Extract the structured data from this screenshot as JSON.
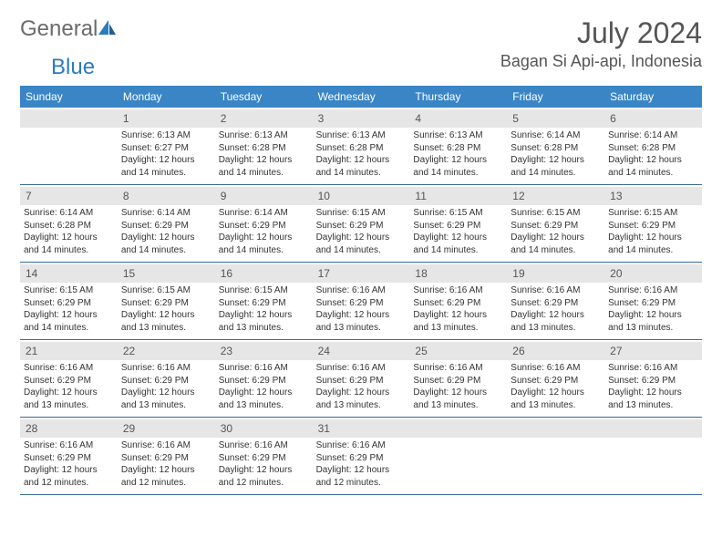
{
  "logo": {
    "word1": "General",
    "word2": "Blue"
  },
  "title": "July 2024",
  "location": "Bagan Si Api-api, Indonesia",
  "colors": {
    "header_bar": "#3a85c6",
    "row_divider": "#3a6a97",
    "daynum_bg": "#e6e6e6",
    "logo_gray": "#6b6b6b",
    "logo_blue": "#2b7bbf",
    "text": "#333333",
    "title_text": "#555555"
  },
  "dow": [
    "Sunday",
    "Monday",
    "Tuesday",
    "Wednesday",
    "Thursday",
    "Friday",
    "Saturday"
  ],
  "weeks": [
    [
      {
        "n": "",
        "sr": "",
        "ss": "",
        "dl1": "",
        "dl2": ""
      },
      {
        "n": "1",
        "sr": "Sunrise: 6:13 AM",
        "ss": "Sunset: 6:27 PM",
        "dl1": "Daylight: 12 hours",
        "dl2": "and 14 minutes."
      },
      {
        "n": "2",
        "sr": "Sunrise: 6:13 AM",
        "ss": "Sunset: 6:28 PM",
        "dl1": "Daylight: 12 hours",
        "dl2": "and 14 minutes."
      },
      {
        "n": "3",
        "sr": "Sunrise: 6:13 AM",
        "ss": "Sunset: 6:28 PM",
        "dl1": "Daylight: 12 hours",
        "dl2": "and 14 minutes."
      },
      {
        "n": "4",
        "sr": "Sunrise: 6:13 AM",
        "ss": "Sunset: 6:28 PM",
        "dl1": "Daylight: 12 hours",
        "dl2": "and 14 minutes."
      },
      {
        "n": "5",
        "sr": "Sunrise: 6:14 AM",
        "ss": "Sunset: 6:28 PM",
        "dl1": "Daylight: 12 hours",
        "dl2": "and 14 minutes."
      },
      {
        "n": "6",
        "sr": "Sunrise: 6:14 AM",
        "ss": "Sunset: 6:28 PM",
        "dl1": "Daylight: 12 hours",
        "dl2": "and 14 minutes."
      }
    ],
    [
      {
        "n": "7",
        "sr": "Sunrise: 6:14 AM",
        "ss": "Sunset: 6:28 PM",
        "dl1": "Daylight: 12 hours",
        "dl2": "and 14 minutes."
      },
      {
        "n": "8",
        "sr": "Sunrise: 6:14 AM",
        "ss": "Sunset: 6:29 PM",
        "dl1": "Daylight: 12 hours",
        "dl2": "and 14 minutes."
      },
      {
        "n": "9",
        "sr": "Sunrise: 6:14 AM",
        "ss": "Sunset: 6:29 PM",
        "dl1": "Daylight: 12 hours",
        "dl2": "and 14 minutes."
      },
      {
        "n": "10",
        "sr": "Sunrise: 6:15 AM",
        "ss": "Sunset: 6:29 PM",
        "dl1": "Daylight: 12 hours",
        "dl2": "and 14 minutes."
      },
      {
        "n": "11",
        "sr": "Sunrise: 6:15 AM",
        "ss": "Sunset: 6:29 PM",
        "dl1": "Daylight: 12 hours",
        "dl2": "and 14 minutes."
      },
      {
        "n": "12",
        "sr": "Sunrise: 6:15 AM",
        "ss": "Sunset: 6:29 PM",
        "dl1": "Daylight: 12 hours",
        "dl2": "and 14 minutes."
      },
      {
        "n": "13",
        "sr": "Sunrise: 6:15 AM",
        "ss": "Sunset: 6:29 PM",
        "dl1": "Daylight: 12 hours",
        "dl2": "and 14 minutes."
      }
    ],
    [
      {
        "n": "14",
        "sr": "Sunrise: 6:15 AM",
        "ss": "Sunset: 6:29 PM",
        "dl1": "Daylight: 12 hours",
        "dl2": "and 14 minutes."
      },
      {
        "n": "15",
        "sr": "Sunrise: 6:15 AM",
        "ss": "Sunset: 6:29 PM",
        "dl1": "Daylight: 12 hours",
        "dl2": "and 13 minutes."
      },
      {
        "n": "16",
        "sr": "Sunrise: 6:15 AM",
        "ss": "Sunset: 6:29 PM",
        "dl1": "Daylight: 12 hours",
        "dl2": "and 13 minutes."
      },
      {
        "n": "17",
        "sr": "Sunrise: 6:16 AM",
        "ss": "Sunset: 6:29 PM",
        "dl1": "Daylight: 12 hours",
        "dl2": "and 13 minutes."
      },
      {
        "n": "18",
        "sr": "Sunrise: 6:16 AM",
        "ss": "Sunset: 6:29 PM",
        "dl1": "Daylight: 12 hours",
        "dl2": "and 13 minutes."
      },
      {
        "n": "19",
        "sr": "Sunrise: 6:16 AM",
        "ss": "Sunset: 6:29 PM",
        "dl1": "Daylight: 12 hours",
        "dl2": "and 13 minutes."
      },
      {
        "n": "20",
        "sr": "Sunrise: 6:16 AM",
        "ss": "Sunset: 6:29 PM",
        "dl1": "Daylight: 12 hours",
        "dl2": "and 13 minutes."
      }
    ],
    [
      {
        "n": "21",
        "sr": "Sunrise: 6:16 AM",
        "ss": "Sunset: 6:29 PM",
        "dl1": "Daylight: 12 hours",
        "dl2": "and 13 minutes."
      },
      {
        "n": "22",
        "sr": "Sunrise: 6:16 AM",
        "ss": "Sunset: 6:29 PM",
        "dl1": "Daylight: 12 hours",
        "dl2": "and 13 minutes."
      },
      {
        "n": "23",
        "sr": "Sunrise: 6:16 AM",
        "ss": "Sunset: 6:29 PM",
        "dl1": "Daylight: 12 hours",
        "dl2": "and 13 minutes."
      },
      {
        "n": "24",
        "sr": "Sunrise: 6:16 AM",
        "ss": "Sunset: 6:29 PM",
        "dl1": "Daylight: 12 hours",
        "dl2": "and 13 minutes."
      },
      {
        "n": "25",
        "sr": "Sunrise: 6:16 AM",
        "ss": "Sunset: 6:29 PM",
        "dl1": "Daylight: 12 hours",
        "dl2": "and 13 minutes."
      },
      {
        "n": "26",
        "sr": "Sunrise: 6:16 AM",
        "ss": "Sunset: 6:29 PM",
        "dl1": "Daylight: 12 hours",
        "dl2": "and 13 minutes."
      },
      {
        "n": "27",
        "sr": "Sunrise: 6:16 AM",
        "ss": "Sunset: 6:29 PM",
        "dl1": "Daylight: 12 hours",
        "dl2": "and 13 minutes."
      }
    ],
    [
      {
        "n": "28",
        "sr": "Sunrise: 6:16 AM",
        "ss": "Sunset: 6:29 PM",
        "dl1": "Daylight: 12 hours",
        "dl2": "and 12 minutes."
      },
      {
        "n": "29",
        "sr": "Sunrise: 6:16 AM",
        "ss": "Sunset: 6:29 PM",
        "dl1": "Daylight: 12 hours",
        "dl2": "and 12 minutes."
      },
      {
        "n": "30",
        "sr": "Sunrise: 6:16 AM",
        "ss": "Sunset: 6:29 PM",
        "dl1": "Daylight: 12 hours",
        "dl2": "and 12 minutes."
      },
      {
        "n": "31",
        "sr": "Sunrise: 6:16 AM",
        "ss": "Sunset: 6:29 PM",
        "dl1": "Daylight: 12 hours",
        "dl2": "and 12 minutes."
      },
      {
        "n": "",
        "sr": "",
        "ss": "",
        "dl1": "",
        "dl2": ""
      },
      {
        "n": "",
        "sr": "",
        "ss": "",
        "dl1": "",
        "dl2": ""
      },
      {
        "n": "",
        "sr": "",
        "ss": "",
        "dl1": "",
        "dl2": ""
      }
    ]
  ]
}
